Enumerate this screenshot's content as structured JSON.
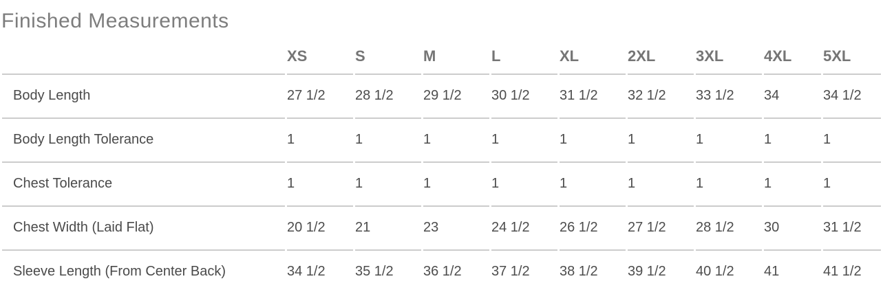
{
  "title": "Finished Measurements",
  "table": {
    "columns": [
      "XS",
      "S",
      "M",
      "L",
      "XL",
      "2XL",
      "3XL",
      "4XL",
      "5XL"
    ],
    "rows": [
      {
        "label": "Body Length",
        "values": [
          "27 1/2",
          "28 1/2",
          "29 1/2",
          "30 1/2",
          "31 1/2",
          "32 1/2",
          "33 1/2",
          "34",
          "34 1/2"
        ]
      },
      {
        "label": "Body Length Tolerance",
        "values": [
          "1",
          "1",
          "1",
          "1",
          "1",
          "1",
          "1",
          "1",
          "1"
        ]
      },
      {
        "label": "Chest Tolerance",
        "values": [
          "1",
          "1",
          "1",
          "1",
          "1",
          "1",
          "1",
          "1",
          "1"
        ]
      },
      {
        "label": "Chest Width (Laid Flat)",
        "values": [
          "20 1/2",
          "21",
          "23",
          "24 1/2",
          "26 1/2",
          "27 1/2",
          "28 1/2",
          "30",
          "31 1/2"
        ]
      },
      {
        "label": "Sleeve Length (From Center Back)",
        "values": [
          "34 1/2",
          "35 1/2",
          "36 1/2",
          "37 1/2",
          "38 1/2",
          "39 1/2",
          "40 1/2",
          "41",
          "41 1/2"
        ]
      }
    ]
  },
  "colors": {
    "title_text": "#7d7d7d",
    "header_text": "#757575",
    "cell_text": "#4d4d4d",
    "divider": "#cccccc",
    "background": "#ffffff"
  }
}
